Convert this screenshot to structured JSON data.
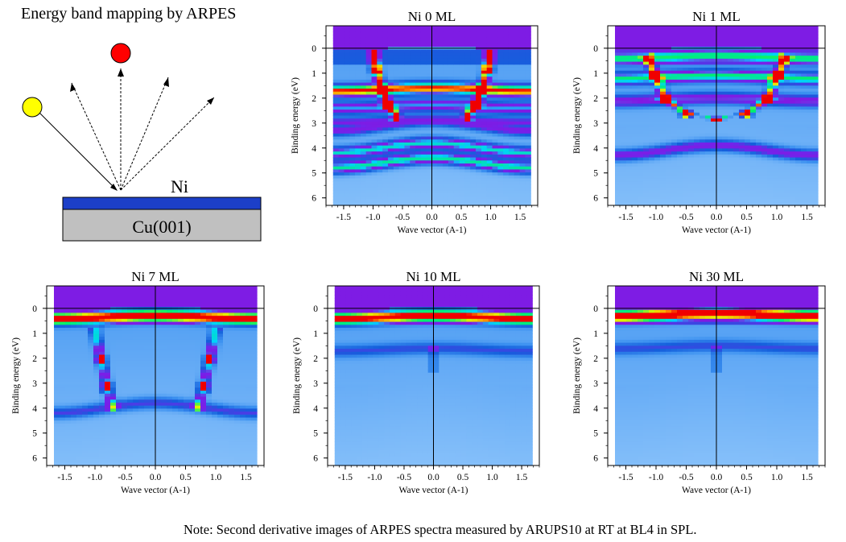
{
  "header": {
    "title": "Energy band mapping by ARPES"
  },
  "schematic": {
    "overlayer": "Ni",
    "substrate": "Cu(001)"
  },
  "note": "Note: Second derivative images of ARPES spectra measured by ARUPS10 at RT at BL4 in SPL.",
  "colors": {
    "overlayer": "#1c3fc8",
    "substrate": "#c0c0c0",
    "source_photon": "#ffff00",
    "photoelectron": "#ff0000"
  },
  "chart_data": [
    {
      "type": "heatmap",
      "title": "Ni 0 ML",
      "xlabel": "Wave vector (A-1)",
      "ylabel": "Binding energy (eV)",
      "x_ticks": [
        "-1.5",
        "-1.0",
        "-0.5",
        "0.0",
        "0.5",
        "1.0",
        "1.5"
      ],
      "y_ticks": [
        "0",
        "1",
        "2",
        "3",
        "4",
        "5",
        "6"
      ],
      "xlim": [
        -1.8,
        1.8
      ],
      "ylim": [
        -0.9,
        6.3
      ],
      "colormap": "rainbow",
      "flat_bands": [
        [
          1.6,
          0.9
        ],
        [
          2.3,
          0.45
        ],
        [
          2.9,
          0.35
        ],
        [
          3.8,
          0.55
        ],
        [
          4.4,
          0.6
        ]
      ],
      "dispersive_bands": [
        {
          "k": [
            -1.0,
            -0.95,
            -0.85,
            -0.75,
            -0.6
          ],
          "E": [
            -0.3,
            0.8,
            1.6,
            2.2,
            2.7
          ],
          "w": 0.9
        },
        {
          "k": [
            1.0,
            0.95,
            0.85,
            0.75,
            0.6
          ],
          "E": [
            -0.3,
            0.8,
            1.6,
            2.2,
            2.7
          ],
          "w": 0.9
        }
      ]
    },
    {
      "type": "heatmap",
      "title": "Ni 1 ML",
      "xlabel": "Wave vector (A-1)",
      "ylabel": "Binding energy (eV)",
      "x_ticks": [
        "-1.5",
        "-1.0",
        "-0.5",
        "0.0",
        "0.5",
        "1.0",
        "1.5"
      ],
      "y_ticks": [
        "0",
        "1",
        "2",
        "3",
        "4",
        "5",
        "6"
      ],
      "xlim": [
        -1.8,
        1.8
      ],
      "ylim": [
        -0.9,
        6.3
      ],
      "colormap": "rainbow",
      "flat_bands": [
        [
          0.3,
          0.45
        ],
        [
          1.1,
          0.6
        ],
        [
          2.0,
          0.4
        ],
        [
          3.9,
          0.35
        ]
      ],
      "dispersive_bands": [
        {
          "k": [
            -1.15,
            -1.0,
            -0.85,
            -0.5,
            0.0,
            0.5,
            0.85,
            1.0,
            1.15
          ],
          "E": [
            0.3,
            1.0,
            2.0,
            2.6,
            2.8,
            2.6,
            2.0,
            1.0,
            0.3
          ],
          "w": 0.75
        }
      ]
    },
    {
      "type": "heatmap",
      "title": "Ni 7 ML",
      "xlabel": "Wave vector (A-1)",
      "ylabel": "Binding energy (eV)",
      "x_ticks": [
        "-1.5",
        "-1.0",
        "-0.5",
        "0.0",
        "0.5",
        "1.0",
        "1.5"
      ],
      "y_ticks": [
        "0",
        "1",
        "2",
        "3",
        "4",
        "5",
        "6"
      ],
      "xlim": [
        -1.8,
        1.8
      ],
      "ylim": [
        -0.9,
        6.3
      ],
      "colormap": "rainbow",
      "flat_bands": [
        [
          0.3,
          0.9
        ],
        [
          3.8,
          0.25
        ]
      ],
      "dispersive_bands": [
        {
          "k": [
            -1.0,
            -0.9,
            -0.8,
            -0.7
          ],
          "E": [
            0.8,
            2.0,
            3.0,
            3.8
          ],
          "w": 0.5
        },
        {
          "k": [
            1.0,
            0.9,
            0.8,
            0.7
          ],
          "E": [
            0.8,
            2.0,
            3.0,
            3.8
          ],
          "w": 0.5
        }
      ]
    },
    {
      "type": "heatmap",
      "title": "Ni 10 ML",
      "xlabel": "Wave vector (A-1)",
      "ylabel": "Binding energy (eV)",
      "x_ticks": [
        "-1.5",
        "-1.0",
        "-0.5",
        "0.0",
        "0.5",
        "1.0",
        "1.5"
      ],
      "y_ticks": [
        "0",
        "1",
        "2",
        "3",
        "4",
        "5",
        "6"
      ],
      "xlim": [
        -1.8,
        1.8
      ],
      "ylim": [
        -0.9,
        6.3
      ],
      "colormap": "rainbow",
      "flat_bands": [
        [
          0.3,
          0.85
        ],
        [
          1.6,
          0.2
        ]
      ],
      "dispersive_bands": []
    },
    {
      "type": "heatmap",
      "title": "Ni 30 ML",
      "xlabel": "Wave vector (A-1)",
      "ylabel": "Binding energy (eV)",
      "x_ticks": [
        "-1.5",
        "-1.0",
        "-0.5",
        "0.0",
        "0.5",
        "1.0",
        "1.5"
      ],
      "y_ticks": [
        "0",
        "1",
        "2",
        "3",
        "4",
        "5",
        "6"
      ],
      "xlim": [
        -1.8,
        1.8
      ],
      "ylim": [
        -0.9,
        6.3
      ],
      "colormap": "rainbow",
      "flat_bands": [
        [
          0.2,
          0.95
        ],
        [
          1.5,
          0.2
        ]
      ],
      "dispersive_bands": []
    }
  ]
}
